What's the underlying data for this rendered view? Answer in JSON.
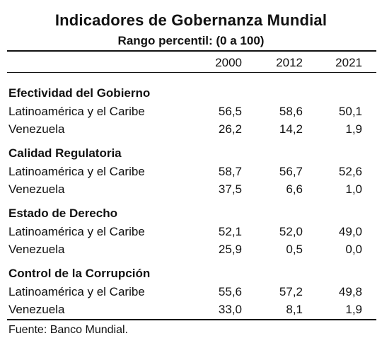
{
  "title": "Indicadores de Gobernanza Mundial",
  "subtitle": "Rango percentil: (0 a 100)",
  "years": [
    "2000",
    "2012",
    "2021"
  ],
  "sections": [
    {
      "title": "Efectividad del Gobierno",
      "rows": [
        {
          "label": "Latinoamérica y el Caribe",
          "values": [
            "56,5",
            "58,6",
            "50,1"
          ]
        },
        {
          "label": "Venezuela",
          "values": [
            "26,2",
            "14,2",
            "1,9"
          ]
        }
      ]
    },
    {
      "title": "Calidad Regulatoria",
      "rows": [
        {
          "label": "Latinoamérica y el Caribe",
          "values": [
            "58,7",
            "56,7",
            "52,6"
          ]
        },
        {
          "label": "Venezuela",
          "values": [
            "37,5",
            "6,6",
            "1,0"
          ]
        }
      ]
    },
    {
      "title": "Estado de Derecho",
      "rows": [
        {
          "label": "Latinoamérica y el Caribe",
          "values": [
            "52,1",
            "52,0",
            "49,0"
          ]
        },
        {
          "label": "Venezuela",
          "values": [
            "25,9",
            "0,5",
            "0,0"
          ]
        }
      ]
    },
    {
      "title": "Control de la Corrupción",
      "rows": [
        {
          "label": "Latinoamérica y el Caribe",
          "values": [
            "55,6",
            "57,2",
            "49,8"
          ]
        },
        {
          "label": "Venezuela",
          "values": [
            "33,0",
            "8,1",
            "1,9"
          ]
        }
      ]
    }
  ],
  "source": "Fuente: Banco Mundial."
}
